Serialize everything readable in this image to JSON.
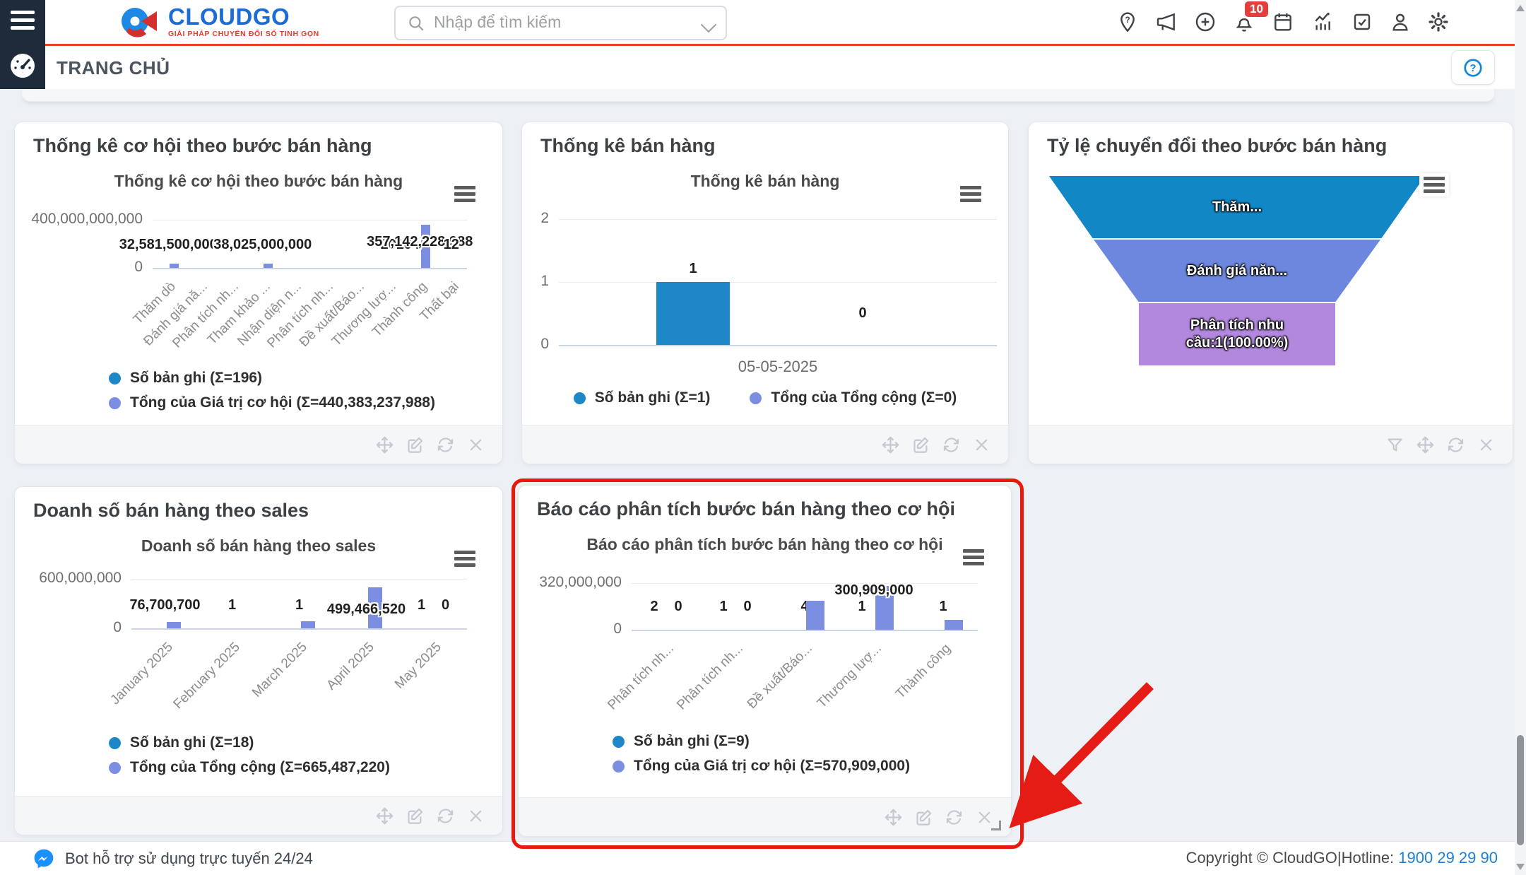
{
  "header": {
    "logo": {
      "name": "CLOUDGO",
      "tagline": "GIẢI PHÁP CHUYỂN ĐỔI SỐ TINH GỌN"
    },
    "search_placeholder": "Nhập để tìm kiếm",
    "page_title": "TRANG CHỦ",
    "notification_count": "10",
    "icons": [
      "location-question-icon",
      "announcement-icon",
      "add-circle-icon",
      "notification-bell-icon",
      "calendar-icon",
      "analytics-icon",
      "tasks-check-icon",
      "profile-icon",
      "settings-gear-icon",
      "help-icon"
    ]
  },
  "footer": {
    "bot_text": "Bot hỗ trợ sử dụng trực tuyến 24/24",
    "copyright": "Copyright © CloudGO",
    "separator": "|",
    "hotline_label": "Hotline:",
    "hotline_number": "1900 29 29 90"
  },
  "colors": {
    "accent_red": "#e8432a",
    "highlight_red": "#e8190f",
    "series_count_blue": "#1d87c8",
    "series_value_periwinkle": "#7b8ee1",
    "funnel_blue": "#1287c6",
    "funnel_periwinkle": "#6d87de",
    "funnel_purple": "#b288de",
    "sidebar_navy": "#1d2b3a",
    "link_blue": "#1a82d6"
  },
  "chart_data": [
    {
      "type": "bar",
      "card_title": "Thống kê cơ hội theo bước bán hàng",
      "title": "Thống kê cơ hội theo bước bán hàng",
      "ylim": [
        0,
        400000000000
      ],
      "yticks": [
        {
          "value": 400000000000,
          "label": "400,000,000,000"
        },
        {
          "value": 0,
          "label": "0"
        }
      ],
      "categories": [
        "Thăm dò",
        "Đánh giá nă...",
        "Phân tích nh...",
        "Tham khảo ...",
        "Nhận diện n...",
        "Phân tích nh...",
        "Đề xuất/Báo...",
        "Thương lượ...",
        "Thành công",
        "Thất bại"
      ],
      "series": [
        {
          "name": "Số bản ghi",
          "sum": "Σ=196",
          "color": "#1d87c8",
          "values": [
            null,
            null,
            null,
            null,
            null,
            null,
            null,
            20,
            104,
            12
          ],
          "labels": [
            null,
            null,
            null,
            null,
            null,
            null,
            null,
            "20",
            "104",
            "12"
          ]
        },
        {
          "name": "Tổng của Giá trị cơ hội",
          "sum": "Σ=440,383,237,988",
          "color": "#7b8ee1",
          "values": [
            32581500000,
            null,
            null,
            38025000000,
            null,
            null,
            null,
            null,
            357142228988,
            null
          ],
          "labels": [
            "32,581,500,000",
            null,
            null,
            "38,025,000,000",
            null,
            null,
            null,
            null,
            "357,142,228,988",
            null
          ]
        }
      ],
      "legend_layout": "stack",
      "actions": [
        "move",
        "edit",
        "refresh",
        "close"
      ],
      "layout": {
        "pl": 195,
        "pr": 640,
        "gt": 138,
        "bl": 206,
        "bw": 13,
        "off": 8,
        "vlo": -13,
        "clo": 28,
        "rot": 1
      }
    },
    {
      "type": "bar",
      "card_title": "Thống kê bán hàng",
      "title": "Thống kê bán hàng",
      "ylim": [
        0,
        2
      ],
      "yticks": [
        {
          "value": 2,
          "label": "2"
        },
        {
          "value": 1,
          "label": "1"
        },
        {
          "value": 0,
          "label": "0"
        }
      ],
      "categories": [
        "05-05-2025"
      ],
      "series": [
        {
          "name": "Số bản ghi",
          "sum": "Σ=1",
          "color": "#1d87c8",
          "values": [
            1
          ],
          "labels": [
            "1"
          ]
        },
        {
          "name": "Tổng của Tổng cộng",
          "sum": "Σ=0",
          "color": "#7b8ee1",
          "values": [
            0
          ],
          "labels": [
            "0"
          ]
        }
      ],
      "legend_layout": "row",
      "actions": [
        "move",
        "edit",
        "refresh",
        "close"
      ],
      "layout": {
        "pl": 52,
        "pr": 672,
        "gt": 137,
        "bl": 315,
        "bw": 104,
        "off": 120,
        "vlo": 30,
        "clo": 40,
        "rot": 0
      }
    },
    {
      "type": "funnel",
      "card_title": "Tỷ lệ chuyển đổi theo bước bán hàng",
      "segments": [
        {
          "label": "Thăm...",
          "color": "#1287c6"
        },
        {
          "label": "Đánh giá năn...",
          "color": "#6d87de"
        },
        {
          "label": "Phân tích nhu cầu:1(100.00%)",
          "color": "#b288de"
        }
      ],
      "actions": [
        "filter",
        "move",
        "refresh",
        "close"
      ],
      "layout": {
        "cx": 295,
        "top": 75,
        "h": 90,
        "widths": [
          536,
          410,
          280,
          280
        ]
      }
    },
    {
      "type": "bar",
      "card_title": "Doanh số bán hàng theo sales",
      "title": "Doanh số bán hàng theo sales",
      "ylim": [
        0,
        600000000
      ],
      "yticks": [
        {
          "value": 600000000,
          "label": "600,000,000"
        },
        {
          "value": 0,
          "label": "0"
        }
      ],
      "categories": [
        "January 2025",
        "February 2025",
        "March 2025",
        "April 2025",
        "May 2025"
      ],
      "series": [
        {
          "name": "Số bản ghi",
          "sum": "Σ=18",
          "color": "#1d87c8",
          "values": [
            null,
            1,
            1,
            null,
            1
          ],
          "labels": [
            null,
            "1",
            "1",
            null,
            "1"
          ]
        },
        {
          "name": "Tổng của Tổng cộng",
          "sum": "Σ=665,487,220",
          "color": "#7b8ee1",
          "values": [
            76700700,
            null,
            89320000,
            499466520,
            0
          ],
          "labels": [
            "76,700,700",
            null,
            null,
            "499,466,520",
            "0"
          ]
        }
      ],
      "legend_layout": "stack",
      "actions": [
        "move",
        "edit",
        "refresh",
        "close"
      ],
      "layout": {
        "pl": 165,
        "pr": 640,
        "gt": 130,
        "bl": 200,
        "bw": 20,
        "off": 12,
        "vlo": -20,
        "clo": 28,
        "rot": 1
      }
    },
    {
      "type": "bar",
      "card_title": "Báo cáo phân tích bước bán hàng theo cơ hội",
      "title": "Báo cáo phân tích bước bán hàng theo cơ hội",
      "ylim": [
        0,
        320000000
      ],
      "yticks": [
        {
          "value": 320000000,
          "label": "320,000,000"
        },
        {
          "value": 0,
          "label": "0"
        }
      ],
      "categories": [
        "Phân tích nh...",
        "Phân tích nh...",
        "Đề xuất/Báo...",
        "Thương lượ...",
        "Thành công"
      ],
      "series": [
        {
          "name": "Số bản ghi",
          "sum": "Σ=9",
          "color": "#1d87c8",
          "values": [
            2,
            1,
            4,
            1,
            1
          ],
          "labels": [
            "2",
            "1",
            "4",
            "1",
            "1"
          ]
        },
        {
          "name": "Tổng của Giá trị cơ hội",
          "sum": "Σ=570,909,000",
          "color": "#7b8ee1",
          "values": [
            0,
            0,
            200000000,
            300909000,
            70000000
          ],
          "labels": [
            "0",
            "0",
            null,
            "300,909,000",
            null
          ]
        }
      ],
      "legend_layout": "stack",
      "actions": [
        "move",
        "edit",
        "refresh",
        "close"
      ],
      "layout": {
        "pl": 160,
        "pr": 650,
        "gt": 138,
        "bl": 204,
        "bw": 26,
        "off": 15,
        "vlo": 5,
        "clo": 28,
        "rot": 1
      }
    }
  ]
}
